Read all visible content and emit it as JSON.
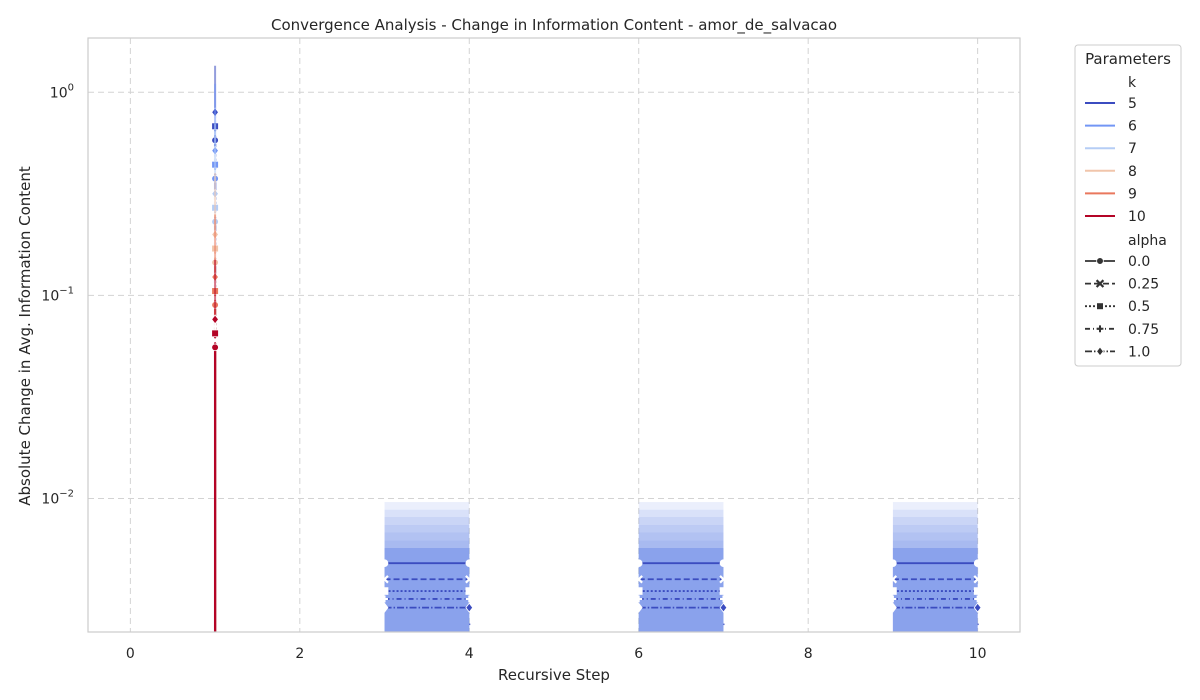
{
  "colors": {
    "k5": "#3b4cc0",
    "k6": "#7396f5",
    "k7": "#b5cdf5",
    "k8": "#f1c5ab",
    "k9": "#e9785d",
    "k10": "#b40426",
    "band": "#6f8fe8",
    "grid": "#d3d3d3",
    "spine": "#cccccc"
  },
  "chart_data": {
    "type": "line",
    "title": "Convergence Analysis - Change in Information Content - amor_de_salvacao",
    "xlabel": "Recursive Step",
    "ylabel": "Absolute Change in Avg. Information Content",
    "xlim": [
      -0.5,
      10.5
    ],
    "ylim": [
      0.0022,
      1.85
    ],
    "yscale": "log",
    "grid": true,
    "x_ticks": [
      0,
      2,
      4,
      6,
      8,
      10
    ],
    "x_tick_labels": [
      "0",
      "2",
      "4",
      "6",
      "8",
      "10"
    ],
    "y_ticks": [
      0.01,
      0.1,
      1
    ],
    "y_tick_labels": [
      {
        "base": "10",
        "exp": "−2"
      },
      {
        "base": "10",
        "exp": "−1"
      },
      {
        "base": "10",
        "exp": "0"
      }
    ],
    "legend": {
      "title": "Parameters",
      "placement": "outside-right",
      "hue_title": "k",
      "hue_entries": [
        {
          "label": "5",
          "color_key": "k5"
        },
        {
          "label": "6",
          "color_key": "k6"
        },
        {
          "label": "7",
          "color_key": "k7"
        },
        {
          "label": "8",
          "color_key": "k8"
        },
        {
          "label": "9",
          "color_key": "k9"
        },
        {
          "label": "10",
          "color_key": "k10"
        }
      ],
      "style_title": "alpha",
      "style_entries": [
        {
          "label": "0.0",
          "dash": "solid",
          "marker": "circle"
        },
        {
          "label": "0.25",
          "dash": "dashed",
          "marker": "x"
        },
        {
          "label": "0.5",
          "dash": "dotted",
          "marker": "square"
        },
        {
          "label": "0.75",
          "dash": "dashdot-loose",
          "marker": "plus"
        },
        {
          "label": "1.0",
          "dash": "dashdot",
          "marker": "diamond"
        }
      ]
    },
    "spikes": [
      {
        "k": "5",
        "x": 1,
        "y_top": 0.68,
        "y_upper": 1.35
      },
      {
        "k": "6",
        "x": 1,
        "y_top": 0.44,
        "y_upper": 1.1
      },
      {
        "k": "7",
        "x": 1,
        "y_top": 0.27,
        "y_upper": 0.7
      },
      {
        "k": "8",
        "x": 1,
        "y_top": 0.17,
        "y_upper": 0.4
      },
      {
        "k": "9",
        "x": 1,
        "y_top": 0.105,
        "y_upper": 0.25
      },
      {
        "k": "10",
        "x": 1,
        "y_top": 0.065,
        "y_upper": 0.15
      }
    ],
    "bands": [
      {
        "x_start": 3,
        "x_end": 4
      },
      {
        "x_start": 6,
        "x_end": 7
      },
      {
        "x_start": 9,
        "x_end": 10
      }
    ],
    "band_upper_levels": [
      0.0096,
      0.0088,
      0.0081,
      0.0074,
      0.0068,
      0.0062,
      0.0057
    ],
    "band_series": [
      {
        "alpha": "0.0",
        "y": 0.0048
      },
      {
        "alpha": "0.25",
        "y": 0.004
      },
      {
        "alpha": "0.5",
        "y": 0.0035
      },
      {
        "alpha": "0.75",
        "y": 0.0032
      },
      {
        "alpha": "1.0",
        "y": 0.0029
      }
    ]
  }
}
